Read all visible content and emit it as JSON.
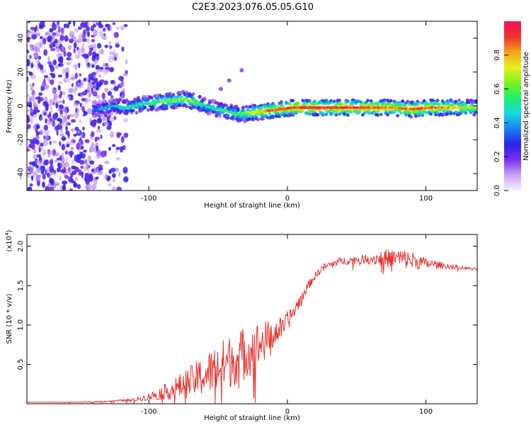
{
  "title": "C2E3.2023.076.05.05.G10",
  "colors": {
    "snr_line": "#e8302c",
    "axis": "#000000",
    "colormap": [
      "#f5f0ff",
      "#c9a4f5",
      "#7b2ff0",
      "#2a22e6",
      "#1a7ff0",
      "#14d9e6",
      "#1ef06a",
      "#7af020",
      "#e6f01a",
      "#f5a21a",
      "#f03030",
      "#f0145a"
    ]
  },
  "chart_data": [
    {
      "type": "heatmap",
      "xlabel": "Height of straight line (km)",
      "ylabel": "Frequency (Hz)",
      "xlim": [
        -188,
        137
      ],
      "ylim": [
        -50,
        50
      ],
      "xticks": [
        -100,
        0,
        100
      ],
      "yticks": [
        -40,
        -20,
        0,
        20,
        40
      ],
      "colorbar": {
        "label": "Normalized spectral amplitude",
        "range": [
          0,
          1
        ],
        "ticks": [
          "0.0",
          "0.2",
          "0.4",
          "0.6",
          "0.8"
        ]
      },
      "ridge": {
        "x": [
          -135,
          -125,
          -115,
          -105,
          -95,
          -85,
          -75,
          -65,
          -55,
          -45,
          -35,
          -25,
          -15,
          -5,
          5,
          25,
          50,
          75,
          90,
          105,
          120,
          137
        ],
        "freq": [
          -2,
          0,
          -1,
          1,
          2,
          3,
          4,
          2,
          -1,
          -3,
          -5,
          -4,
          -3,
          -2,
          -1,
          -1,
          -1,
          -1,
          -2,
          -1,
          -1,
          -1
        ],
        "amplitude": [
          0.35,
          0.4,
          0.45,
          0.5,
          0.55,
          0.6,
          0.62,
          0.55,
          0.45,
          0.5,
          0.55,
          0.7,
          0.8,
          0.85,
          0.9,
          0.9,
          0.9,
          0.8,
          0.85,
          0.85,
          0.75,
          0.6
        ]
      }
    },
    {
      "type": "line",
      "xlabel": "Height of straight line (km)",
      "ylabel": "SNR (10 * v/v)",
      "yscale_label": "(x10",
      "yscale_exp": "4",
      "xlim": [
        -188,
        137
      ],
      "ylim": [
        0,
        2.15
      ],
      "xticks": [
        -100,
        0,
        100
      ],
      "yticks": [
        "0.5",
        "1.0",
        "1.5",
        "2.0"
      ],
      "ytick_values": [
        0.5,
        1.0,
        1.5,
        2.0
      ],
      "series": [
        {
          "x": [
            -188,
            -150,
            -130,
            -110,
            -100,
            -90,
            -80,
            -70,
            -60,
            -50,
            -40,
            -30,
            -20,
            -10,
            -5,
            0,
            5,
            10,
            15,
            20,
            25,
            35,
            50,
            60,
            70,
            80,
            90,
            100,
            110,
            120,
            130,
            137
          ],
          "y": [
            0.02,
            0.02,
            0.03,
            0.05,
            0.09,
            0.14,
            0.2,
            0.28,
            0.36,
            0.46,
            0.55,
            0.65,
            0.75,
            0.88,
            0.95,
            1.05,
            1.18,
            1.35,
            1.5,
            1.62,
            1.72,
            1.8,
            1.83,
            1.84,
            1.85,
            1.85,
            1.82,
            1.78,
            1.76,
            1.74,
            1.72,
            1.7
          ],
          "noise": [
            0.0,
            0.005,
            0.01,
            0.02,
            0.05,
            0.09,
            0.14,
            0.2,
            0.26,
            0.32,
            0.34,
            0.34,
            0.3,
            0.18,
            0.15,
            0.12,
            0.1,
            0.08,
            0.05,
            0.05,
            0.05,
            0.05,
            0.05,
            0.07,
            0.11,
            0.12,
            0.12,
            0.07,
            0.04,
            0.03,
            0.02,
            0.02
          ]
        }
      ]
    }
  ]
}
